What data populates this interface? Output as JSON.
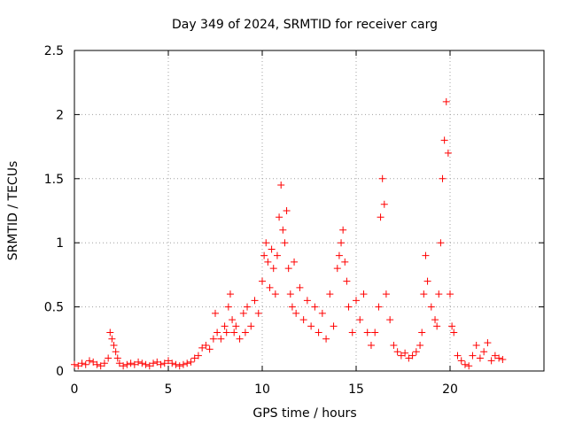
{
  "chart_data": {
    "type": "scatter",
    "title": "Day 349 of 2024, SRMTID for receiver carg",
    "xlabel": "GPS time / hours",
    "ylabel": "SRMTID / TECUs",
    "xlim": [
      0,
      25
    ],
    "ylim": [
      0,
      2.5
    ],
    "xticks": [
      0,
      5,
      10,
      15,
      20
    ],
    "yticks": [
      0,
      0.5,
      1,
      1.5,
      2,
      2.5
    ],
    "grid": true,
    "marker": "+",
    "color": "#ff0000",
    "series": [
      {
        "name": "SRMTID",
        "x": [
          0.0,
          0.2,
          0.4,
          0.6,
          0.8,
          1.0,
          1.2,
          1.4,
          1.6,
          1.8,
          1.9,
          2.0,
          2.1,
          2.2,
          2.3,
          2.4,
          2.6,
          2.8,
          3.0,
          3.2,
          3.4,
          3.6,
          3.8,
          4.0,
          4.2,
          4.4,
          4.6,
          4.8,
          5.0,
          5.2,
          5.4,
          5.6,
          5.8,
          6.0,
          6.2,
          6.4,
          6.6,
          6.8,
          7.0,
          7.2,
          7.4,
          7.5,
          7.6,
          7.8,
          8.0,
          8.1,
          8.2,
          8.3,
          8.4,
          8.5,
          8.6,
          8.8,
          9.0,
          9.1,
          9.2,
          9.4,
          9.6,
          9.8,
          10.0,
          10.1,
          10.2,
          10.3,
          10.4,
          10.5,
          10.6,
          10.7,
          10.8,
          10.9,
          11.0,
          11.1,
          11.2,
          11.3,
          11.4,
          11.5,
          11.6,
          11.7,
          11.8,
          12.0,
          12.2,
          12.4,
          12.6,
          12.8,
          13.0,
          13.2,
          13.4,
          13.6,
          13.8,
          14.0,
          14.1,
          14.2,
          14.3,
          14.4,
          14.5,
          14.6,
          14.8,
          15.0,
          15.2,
          15.4,
          15.6,
          15.8,
          16.0,
          16.2,
          16.3,
          16.4,
          16.5,
          16.6,
          16.8,
          17.0,
          17.2,
          17.4,
          17.6,
          17.8,
          18.0,
          18.2,
          18.4,
          18.5,
          18.6,
          18.7,
          18.8,
          19.0,
          19.2,
          19.3,
          19.4,
          19.5,
          19.6,
          19.7,
          19.8,
          19.9,
          20.0,
          20.1,
          20.2,
          20.4,
          20.6,
          20.8,
          21.0,
          21.2,
          21.4,
          21.6,
          21.8,
          22.0,
          22.2,
          22.4,
          22.6,
          22.8
        ],
        "y": [
          0.05,
          0.04,
          0.06,
          0.05,
          0.08,
          0.07,
          0.05,
          0.04,
          0.06,
          0.1,
          0.3,
          0.25,
          0.2,
          0.15,
          0.1,
          0.06,
          0.04,
          0.05,
          0.06,
          0.05,
          0.07,
          0.06,
          0.05,
          0.04,
          0.06,
          0.07,
          0.05,
          0.06,
          0.08,
          0.06,
          0.05,
          0.04,
          0.05,
          0.06,
          0.07,
          0.1,
          0.12,
          0.18,
          0.2,
          0.17,
          0.25,
          0.45,
          0.3,
          0.25,
          0.35,
          0.3,
          0.5,
          0.6,
          0.4,
          0.3,
          0.35,
          0.25,
          0.45,
          0.3,
          0.5,
          0.35,
          0.55,
          0.45,
          0.7,
          0.9,
          1.0,
          0.85,
          0.65,
          0.95,
          0.8,
          0.6,
          0.9,
          1.2,
          1.45,
          1.1,
          1.0,
          1.25,
          0.8,
          0.6,
          0.5,
          0.85,
          0.45,
          0.65,
          0.4,
          0.55,
          0.35,
          0.5,
          0.3,
          0.45,
          0.25,
          0.6,
          0.35,
          0.8,
          0.9,
          1.0,
          1.1,
          0.85,
          0.7,
          0.5,
          0.3,
          0.55,
          0.4,
          0.6,
          0.3,
          0.2,
          0.3,
          0.5,
          1.2,
          1.5,
          1.3,
          0.6,
          0.4,
          0.2,
          0.15,
          0.12,
          0.14,
          0.1,
          0.12,
          0.15,
          0.2,
          0.3,
          0.6,
          0.9,
          0.7,
          0.5,
          0.4,
          0.35,
          0.6,
          1.0,
          1.5,
          1.8,
          2.1,
          1.7,
          0.6,
          0.35,
          0.3,
          0.12,
          0.08,
          0.05,
          0.04,
          0.12,
          0.2,
          0.1,
          0.15,
          0.22,
          0.08,
          0.12,
          0.1,
          0.09
        ]
      }
    ]
  }
}
